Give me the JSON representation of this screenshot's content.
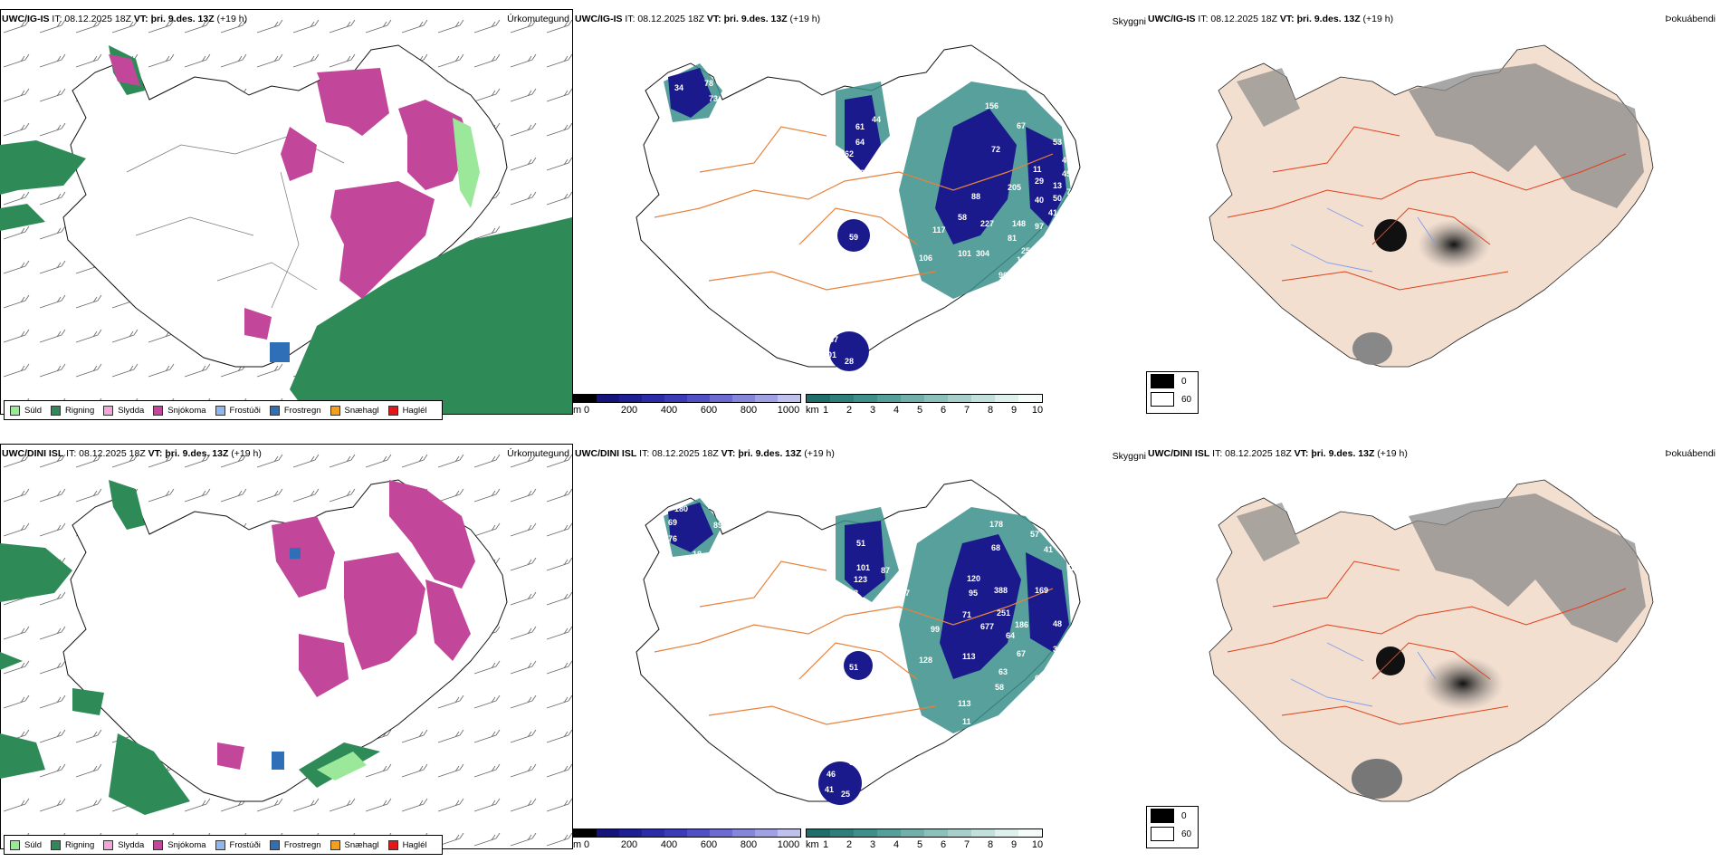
{
  "rows": [
    {
      "model": "UWC/IG-IS",
      "precip_title": {
        "model": "UWC/IG-IS",
        "it": "IT: 08.12.2025 18Z",
        "vt_label": "VT:",
        "vt_value": "þri. 9.des. 13Z",
        "lead": "(+19 h)"
      },
      "cloud_title": {
        "model": "UWC/IG-IS",
        "it": "IT: 08.12.2025 18Z",
        "vt_label": "VT:",
        "vt_value": "þri. 9.des. 13Z",
        "lead": "(+19 h)"
      },
      "fog_title": {
        "model": "UWC/IG-IS",
        "it": "IT: 08.12.2025 18Z",
        "vt_label": "VT:",
        "vt_value": "þri. 9.des. 13Z",
        "lead": "(+19 h)"
      },
      "peaks": [
        "78",
        "73",
        "91",
        "34",
        "07",
        "61",
        "64",
        "44",
        "62",
        "82",
        "99",
        "92",
        "96",
        "156",
        "67",
        "72",
        "53",
        "47",
        "45",
        "11",
        "29",
        "13",
        "205",
        "88",
        "58",
        "227",
        "148",
        "97",
        "117",
        "106",
        "101",
        "304",
        "81",
        "122",
        "45",
        "90",
        "57",
        "76",
        "59",
        "67",
        "01",
        "28",
        "25",
        "40",
        "41",
        "37",
        "50",
        "76"
      ]
    },
    {
      "model": "UWC/DINI ISL",
      "precip_title": {
        "model": "UWC/DINI ISL",
        "it": "IT: 08.12.2025 18Z",
        "vt_label": "VT:",
        "vt_value": "þri. 9.des. 13Z",
        "lead": "(+19 h)"
      },
      "cloud_title": {
        "model": "UWC/DINI ISL",
        "it": "IT: 08.12.2025 18Z",
        "vt_label": "VT:",
        "vt_value": "þri. 9.des. 13Z",
        "lead": "(+19 h)"
      },
      "fog_title": {
        "model": "UWC/DINI ISL",
        "it": "IT: 08.12.2025 18Z",
        "vt_label": "VT:",
        "vt_value": "þri. 9.des. 13Z",
        "lead": "(+19 h)"
      },
      "peaks": [
        "180",
        "73",
        "69",
        "76",
        "18",
        "89",
        "51",
        "57",
        "178",
        "68",
        "57",
        "41",
        "59",
        "62",
        "87",
        "101",
        "208",
        "123",
        "107",
        "120",
        "95",
        "388",
        "169",
        "71",
        "677",
        "251",
        "186",
        "48",
        "99",
        "64",
        "128",
        "113",
        "67",
        "35",
        "45",
        "63",
        "58",
        "113",
        "11",
        "51",
        "58",
        "46",
        "25",
        "41",
        "65",
        "81"
      ]
    }
  ],
  "labels": {
    "precip": "Úrkomutegund",
    "cloud": "Skyggni",
    "fog": "Þokuábendi"
  },
  "precip_legend": [
    {
      "label": "Súld",
      "color": "#9be89b"
    },
    {
      "label": "Rigning",
      "color": "#2e8b57"
    },
    {
      "label": "Slydda",
      "color": "#f2a6d6"
    },
    {
      "label": "Snjókoma",
      "color": "#c2479a"
    },
    {
      "label": "Frostúði",
      "color": "#8fb7ec"
    },
    {
      "label": "Frostregn",
      "color": "#2f6fb8"
    },
    {
      "label": "Snæhagl",
      "color": "#f0a020"
    },
    {
      "label": "Haglél",
      "color": "#e01818"
    }
  ],
  "cloud_legend_m": {
    "unit": "m",
    "ticks": [
      "0",
      "200",
      "400",
      "600",
      "800",
      "1000"
    ]
  },
  "cloud_legend_km": {
    "unit": "km",
    "ticks": [
      "1",
      "2",
      "3",
      "4",
      "5",
      "6",
      "7",
      "8",
      "9",
      "10"
    ]
  },
  "fog_legend": [
    "0",
    "60"
  ],
  "colors": {
    "rain": "#2e8b57",
    "snow": "#c2479a",
    "drizzle": "#9be89b",
    "sleet": "#f2a6d6",
    "frzdrizzle": "#8fb7ec",
    "frzrain": "#2f6fb8",
    "cloud_low": "#1a1a8c",
    "cloud_vis": "#3a8f8a",
    "land_fog": "#f3dfd0",
    "roads": "#e8823c"
  }
}
